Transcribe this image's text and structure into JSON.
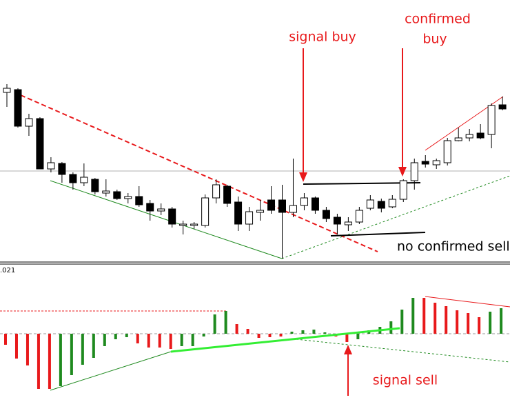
{
  "chart_data": [
    {
      "type": "candlestick",
      "open": [
        246,
        250,
        197,
        208,
        135,
        143,
        127,
        115,
        120,
        100,
        102,
        92,
        95,
        85,
        74,
        77,
        53,
        53,
        53,
        93,
        110,
        87,
        55,
        72,
        90,
        90,
        72,
        82,
        93,
        75,
        65,
        54,
        58,
        78,
        88,
        80,
        91,
        118,
        146,
        141,
        144,
        176,
        180,
        187,
        185,
        228
      ],
      "high": [
        258,
        252,
        215,
        210,
        152,
        145,
        130,
        143,
        122,
        120,
        105,
        100,
        110,
        90,
        85,
        80,
        60,
        58,
        98,
        120,
        112,
        95,
        80,
        90,
        110,
        112,
        150,
        100,
        95,
        80,
        70,
        65,
        80,
        97,
        92,
        97,
        120,
        150,
        155,
        150,
        180,
        195,
        193,
        200,
        230,
        240
      ],
      "low": [
        225,
        195,
        183,
        135,
        130,
        115,
        105,
        110,
        98,
        95,
        90,
        85,
        80,
        60,
        68,
        50,
        40,
        48,
        50,
        85,
        80,
        45,
        45,
        60,
        70,
        5,
        65,
        75,
        70,
        58,
        40,
        45,
        55,
        75,
        72,
        78,
        87,
        105,
        137,
        135,
        140,
        175,
        175,
        178,
        165,
        220
      ],
      "close": [
        252,
        197,
        208,
        135,
        144,
        127,
        115,
        123,
        102,
        103,
        92,
        95,
        83,
        74,
        77,
        55,
        55,
        55,
        93,
        112,
        85,
        55,
        73,
        75,
        75,
        72,
        82,
        93,
        75,
        63,
        55,
        58,
        75,
        90,
        78,
        91,
        118,
        144,
        142,
        147,
        176,
        180,
        185,
        180,
        227,
        222
      ],
      "ylim": [
        0,
        380
      ],
      "up_color": "#ffffff",
      "down_color": "#000000",
      "annotations": [
        "signal buy",
        "confirmed",
        "buy",
        "no confirmed sell"
      ]
    },
    {
      "type": "bar",
      "axis_label": ".021",
      "values": [
        -16,
        -36,
        -46,
        -80,
        -80,
        -76,
        -60,
        -45,
        -35,
        -18,
        -8,
        -5,
        -14,
        -20,
        -20,
        -22,
        -18,
        -18,
        -4,
        28,
        33,
        14,
        7,
        -6,
        -5,
        -4,
        3,
        5,
        6,
        2,
        -4,
        -12,
        -8,
        5,
        10,
        18,
        35,
        52,
        52,
        45,
        40,
        34,
        30,
        24,
        32,
        37
      ],
      "colors": [
        "#e8191b",
        "#e8191b",
        "#e8191b",
        "#e8191b",
        "#e8191b",
        "#1f8a1f",
        "#1f8a1f",
        "#1f8a1f",
        "#1f8a1f",
        "#1f8a1f",
        "#1f8a1f",
        "#1f8a1f",
        "#e8191b",
        "#e8191b",
        "#e8191b",
        "#e8191b",
        "#1f8a1f",
        "#1f8a1f",
        "#1f8a1f",
        "#1f8a1f",
        "#1f8a1f",
        "#e8191b",
        "#e8191b",
        "#e8191b",
        "#e8191b",
        "#e8191b",
        "#1f8a1f",
        "#1f8a1f",
        "#1f8a1f",
        "#1f8a1f",
        "#e8191b",
        "#e8191b",
        "#1f8a1f",
        "#1f8a1f",
        "#1f8a1f",
        "#1f8a1f",
        "#1f8a1f",
        "#1f8a1f",
        "#e8191b",
        "#e8191b",
        "#e8191b",
        "#e8191b",
        "#e8191b",
        "#e8191b",
        "#1f8a1f",
        "#1f8a1f"
      ],
      "ylim": [
        -99,
        99
      ],
      "annotations": [
        "signal sell"
      ]
    }
  ]
}
